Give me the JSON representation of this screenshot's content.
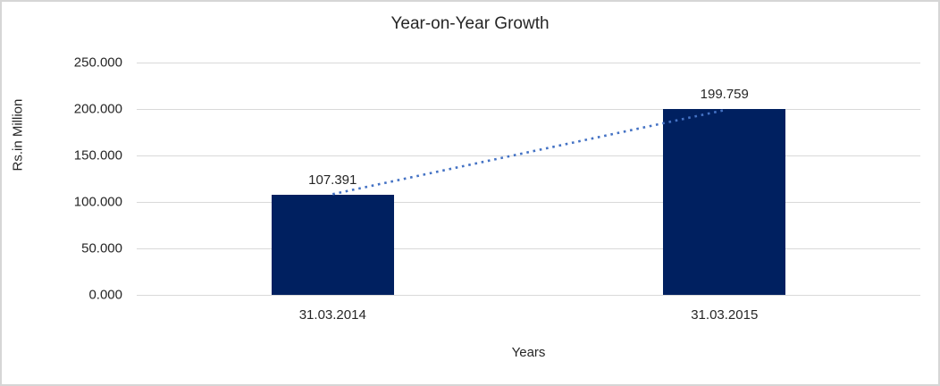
{
  "chart_data": {
    "type": "bar",
    "title": "Year-on-Year Growth",
    "xlabel": "Years",
    "ylabel": "Rs.in Million",
    "categories": [
      "31.03.2014",
      "31.03.2015"
    ],
    "values": [
      107.391,
      199.759
    ],
    "data_labels": [
      "107.391",
      "199.759"
    ],
    "ylim": [
      0,
      250
    ],
    "ytick_labels": [
      "0.000",
      "50.000",
      "100.000",
      "150.000",
      "200.000",
      "250.000"
    ],
    "grid": true,
    "legend": "none",
    "colors": {
      "bar": "#002060",
      "trendline": "#4472C4",
      "gridline": "#d9d9d9",
      "text": "#262626",
      "border": "#d6d6d6"
    },
    "trendline": {
      "style": "dotted",
      "connects": "tops of bars"
    }
  }
}
